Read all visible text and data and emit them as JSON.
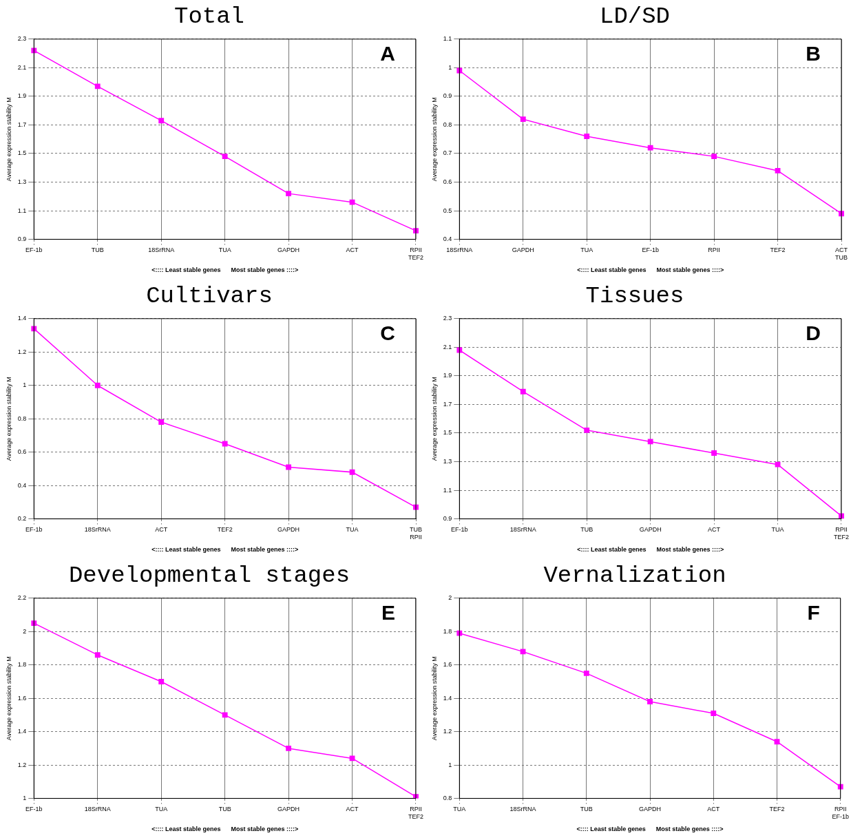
{
  "chart_data": [
    {
      "type": "line",
      "title": "Total",
      "xlabel": "<:::: Least stable genes      Most stable genes ::::>",
      "ylabel": "Average expression stability M",
      "annotations": [
        "A"
      ],
      "categories": [
        "EF-1b",
        "TUB",
        "18SrRNA",
        "TUA",
        "GAPDH",
        "ACT",
        "RPII\nTEF2"
      ],
      "values": [
        2.22,
        1.97,
        1.73,
        1.48,
        1.22,
        1.16,
        0.96
      ],
      "color": "#ff00ff",
      "ylim": [
        0.9,
        2.3
      ],
      "yticks": [
        0.9,
        1.1,
        1.3,
        1.5,
        1.7,
        1.9,
        2.1,
        2.3
      ],
      "grid": true,
      "marker": "square",
      "legend": false
    },
    {
      "type": "line",
      "title": "LD/SD",
      "xlabel": "<:::: Least stable genes      Most stable genes ::::>",
      "ylabel": "Average expression stability M",
      "annotations": [
        "B"
      ],
      "categories": [
        "18SrRNA",
        "GAPDH",
        "TUA",
        "EF-1b",
        "RPII",
        "TEF2",
        "ACT\nTUB"
      ],
      "values": [
        0.99,
        0.82,
        0.76,
        0.72,
        0.69,
        0.64,
        0.49
      ],
      "color": "#ff00ff",
      "ylim": [
        0.4,
        1.1
      ],
      "yticks": [
        0.4,
        0.5,
        0.6,
        0.7,
        0.8,
        0.9,
        1,
        1.1
      ],
      "grid": true,
      "marker": "square",
      "legend": false
    },
    {
      "type": "line",
      "title": "Cultivars",
      "xlabel": "<:::: Least stable genes      Most stable genes ::::>",
      "ylabel": "Average expression stability M",
      "annotations": [
        "C"
      ],
      "categories": [
        "EF-1b",
        "18SrRNA",
        "ACT",
        "TEF2",
        "GAPDH",
        "TUA",
        "TUB\nRPII"
      ],
      "values": [
        1.34,
        1.0,
        0.78,
        0.65,
        0.51,
        0.48,
        0.27
      ],
      "color": "#ff00ff",
      "ylim": [
        0.2,
        1.4
      ],
      "yticks": [
        0.2,
        0.4,
        0.6,
        0.8,
        1,
        1.2,
        1.4
      ],
      "grid": true,
      "marker": "square",
      "legend": false
    },
    {
      "type": "line",
      "title": "Tissues",
      "xlabel": "<:::: Least stable genes      Most stable genes ::::>",
      "ylabel": "Average expression stability M",
      "annotations": [
        "D"
      ],
      "categories": [
        "EF-1b",
        "18SrRNA",
        "TUB",
        "GAPDH",
        "ACT",
        "TUA",
        "RPII\nTEF2"
      ],
      "values": [
        2.08,
        1.79,
        1.52,
        1.44,
        1.36,
        1.28,
        0.92
      ],
      "color": "#ff00ff",
      "ylim": [
        0.9,
        2.3
      ],
      "yticks": [
        0.9,
        1.1,
        1.3,
        1.5,
        1.7,
        1.9,
        2.1,
        2.3
      ],
      "grid": true,
      "marker": "square",
      "legend": false
    },
    {
      "type": "line",
      "title": "Developmental stages",
      "xlabel": "<:::: Least stable genes      Most stable genes ::::>",
      "ylabel": "Average expression stability M",
      "annotations": [
        "E"
      ],
      "categories": [
        "EF-1b",
        "18SrRNA",
        "TUA",
        "TUB",
        "GAPDH",
        "ACT",
        "RPII\nTEF2"
      ],
      "values": [
        2.05,
        1.86,
        1.7,
        1.5,
        1.3,
        1.24,
        1.01
      ],
      "color": "#ff00ff",
      "ylim": [
        1,
        2.2
      ],
      "yticks": [
        1,
        1.2,
        1.4,
        1.6,
        1.8,
        2,
        2.2
      ],
      "grid": true,
      "marker": "square",
      "legend": false
    },
    {
      "type": "line",
      "title": "Vernalization",
      "xlabel": "<:::: Least stable genes      Most stable genes ::::>",
      "ylabel": "Average expression stability M",
      "annotations": [
        "F"
      ],
      "categories": [
        "TUA",
        "18SrRNA",
        "TUB",
        "GAPDH",
        "ACT",
        "TEF2",
        "RPII\nEF-1b"
      ],
      "values": [
        1.79,
        1.68,
        1.55,
        1.38,
        1.31,
        1.14,
        0.87
      ],
      "color": "#ff00ff",
      "ylim": [
        0.8,
        2
      ],
      "yticks": [
        0.8,
        1,
        1.2,
        1.4,
        1.6,
        1.8,
        2
      ],
      "grid": true,
      "marker": "square",
      "legend": false
    }
  ]
}
